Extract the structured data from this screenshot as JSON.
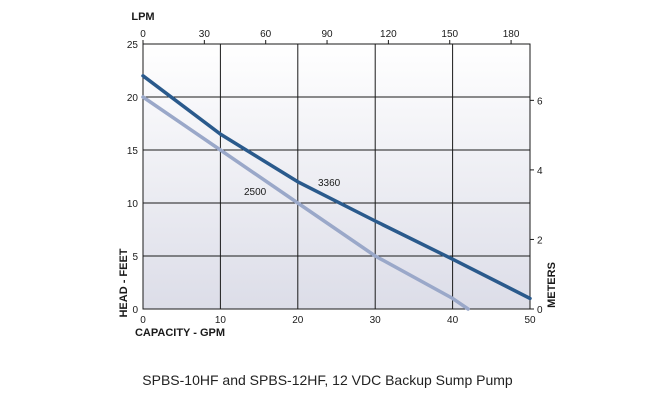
{
  "chart_data": {
    "type": "line",
    "caption": "SPBS-10HF  and SPBS-12HF, 12 VDC Backup Sump Pump",
    "xlabel": "CAPACITY - GPM",
    "ylabel": "HEAD - FEET",
    "x2label": "LPM",
    "y2label": "METERS",
    "xlim": [
      0,
      50
    ],
    "ylim": [
      0,
      25
    ],
    "x_ticks": [
      0,
      10,
      20,
      30,
      40,
      50
    ],
    "y_ticks": [
      0,
      5,
      10,
      15,
      20,
      25
    ],
    "x2_ticks": [
      0,
      30,
      60,
      90,
      120,
      150,
      180
    ],
    "y2_ticks": [
      0,
      2,
      4,
      6
    ],
    "grid": true,
    "series": [
      {
        "name": "3360",
        "color": "#2a5a8c",
        "x": [
          0,
          10,
          20,
          30,
          40,
          50
        ],
        "y": [
          22,
          16.5,
          12,
          8.3,
          4.7,
          1
        ]
      },
      {
        "name": "2500",
        "color": "#9aa8c9",
        "x": [
          0,
          10,
          20,
          30,
          40,
          42
        ],
        "y": [
          20,
          15,
          10,
          5,
          1,
          0
        ]
      }
    ]
  }
}
